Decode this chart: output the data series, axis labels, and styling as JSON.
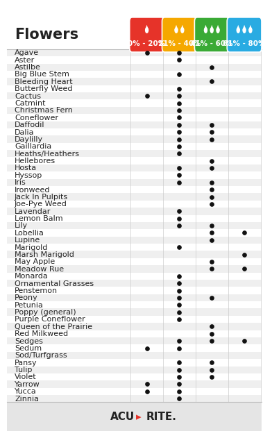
{
  "title": "Flowers",
  "columns": [
    "0% - 20%",
    "21% - 40%",
    "41% - 60%",
    "61% - 80%"
  ],
  "col_colors": [
    "#e63329",
    "#f5a800",
    "#3aaa35",
    "#29abe2"
  ],
  "flowers": [
    "Agave",
    "Aster",
    "Astilbe",
    "Big Blue Stem",
    "Bleeding Heart",
    "Butterfly Weed",
    "Cactus",
    "Catmint",
    "Christmas Fern",
    "Coneflower",
    "Daffodil",
    "Dalia",
    "Daylilly",
    "Gaillardia",
    "Heaths/Heathers",
    "Hellebores",
    "Hosta",
    "Hyssop",
    "Iris",
    "Ironweed",
    "Jack In Pulpits",
    "Joe-Pye Weed",
    "Lavendar",
    "Lemon Balm",
    "Lily",
    "Lobellia",
    "Lupine",
    "Marigold",
    "Marsh Marigold",
    "May Apple",
    "Meadow Rue",
    "Monarda",
    "Ornamental Grasses",
    "Penstemon",
    "Peony",
    "Petunia",
    "Poppy (general)",
    "Purple Coneflower",
    "Queen of the Prairie",
    "Red Milkweed",
    "Sedges",
    "Sedum",
    "Sod/Turfgrass",
    "Pansy",
    "Tulip",
    "Violet",
    "Yarrow",
    "Yucca",
    "Zinnia"
  ],
  "dots": {
    "Agave": [
      1,
      1,
      0,
      0
    ],
    "Aster": [
      0,
      1,
      0,
      0
    ],
    "Astilbe": [
      0,
      0,
      1,
      0
    ],
    "Big Blue Stem": [
      0,
      1,
      0,
      0
    ],
    "Bleeding Heart": [
      0,
      0,
      1,
      0
    ],
    "Butterfly Weed": [
      0,
      1,
      0,
      0
    ],
    "Cactus": [
      1,
      1,
      0,
      0
    ],
    "Catmint": [
      0,
      1,
      0,
      0
    ],
    "Christmas Fern": [
      0,
      1,
      0,
      0
    ],
    "Coneflower": [
      0,
      1,
      0,
      0
    ],
    "Daffodil": [
      0,
      1,
      1,
      0
    ],
    "Dalia": [
      0,
      1,
      1,
      0
    ],
    "Daylilly": [
      0,
      1,
      1,
      0
    ],
    "Gaillardia": [
      0,
      1,
      0,
      0
    ],
    "Heaths/Heathers": [
      0,
      1,
      0,
      0
    ],
    "Hellebores": [
      0,
      0,
      1,
      0
    ],
    "Hosta": [
      0,
      1,
      1,
      0
    ],
    "Hyssop": [
      0,
      1,
      0,
      0
    ],
    "Iris": [
      0,
      1,
      1,
      0
    ],
    "Ironweed": [
      0,
      0,
      1,
      0
    ],
    "Jack In Pulpits": [
      0,
      0,
      1,
      0
    ],
    "Joe-Pye Weed": [
      0,
      0,
      1,
      0
    ],
    "Lavendar": [
      0,
      1,
      0,
      0
    ],
    "Lemon Balm": [
      0,
      1,
      0,
      0
    ],
    "Lily": [
      0,
      1,
      1,
      0
    ],
    "Lobellia": [
      0,
      0,
      1,
      1
    ],
    "Lupine": [
      0,
      0,
      1,
      0
    ],
    "Marigold": [
      0,
      1,
      0,
      0
    ],
    "Marsh Marigold": [
      0,
      0,
      0,
      1
    ],
    "May Apple": [
      0,
      0,
      1,
      0
    ],
    "Meadow Rue": [
      0,
      0,
      1,
      1
    ],
    "Monarda": [
      0,
      1,
      0,
      0
    ],
    "Ornamental Grasses": [
      0,
      1,
      0,
      0
    ],
    "Penstemon": [
      0,
      1,
      0,
      0
    ],
    "Peony": [
      0,
      1,
      1,
      0
    ],
    "Petunia": [
      0,
      1,
      0,
      0
    ],
    "Poppy (general)": [
      0,
      1,
      0,
      0
    ],
    "Purple Coneflower": [
      0,
      1,
      0,
      0
    ],
    "Queen of the Prairie": [
      0,
      0,
      1,
      0
    ],
    "Red Milkweed": [
      0,
      0,
      1,
      0
    ],
    "Sedges": [
      0,
      1,
      1,
      1
    ],
    "Sedum": [
      1,
      1,
      0,
      0
    ],
    "Sod/Turfgrass": [
      0,
      0,
      0,
      0
    ],
    "Pansy": [
      0,
      1,
      1,
      0
    ],
    "Tulip": [
      0,
      1,
      1,
      0
    ],
    "Violet": [
      0,
      1,
      1,
      0
    ],
    "Yarrow": [
      1,
      1,
      0,
      0
    ],
    "Yucca": [
      1,
      1,
      0,
      0
    ],
    "Zinnia": [
      0,
      1,
      0,
      0
    ]
  },
  "background_color": "#ffffff",
  "row_alt_color": "#efefef",
  "row_main_color": "#ffffff",
  "font_size_title": 15,
  "font_size_row": 8.0,
  "font_size_col": 7.5,
  "dot_color": "#111111",
  "drop_icons": [
    1,
    2,
    3,
    3
  ]
}
